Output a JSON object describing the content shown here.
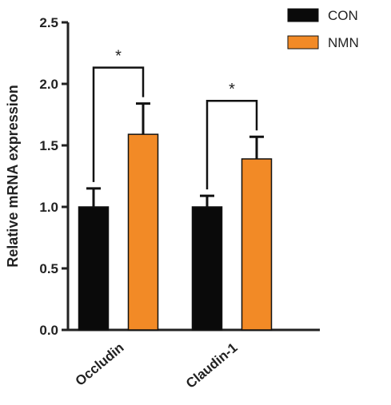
{
  "chart_data": {
    "type": "bar",
    "categories": [
      "Occludin",
      "Claudin-1"
    ],
    "series": [
      {
        "name": "CON",
        "values": [
          1.0,
          1.0
        ],
        "errors": [
          0.15,
          0.09
        ],
        "color": "#0a0a0a"
      },
      {
        "name": "NMN",
        "values": [
          1.59,
          1.39
        ],
        "errors": [
          0.25,
          0.18
        ],
        "color": "#f28a26"
      }
    ],
    "ylabel": "Relative mRNA expression",
    "xlabel": "",
    "ylim": [
      0,
      2.5
    ],
    "yticks": [
      "0.0",
      "0.5",
      "1.0",
      "1.5",
      "2.0",
      "2.5"
    ],
    "yticks_values": [
      0,
      0.5,
      1.0,
      1.5,
      2.0,
      2.5
    ],
    "significance": [
      "*",
      "*"
    ],
    "legend_placement": "top-right",
    "grid": false
  }
}
